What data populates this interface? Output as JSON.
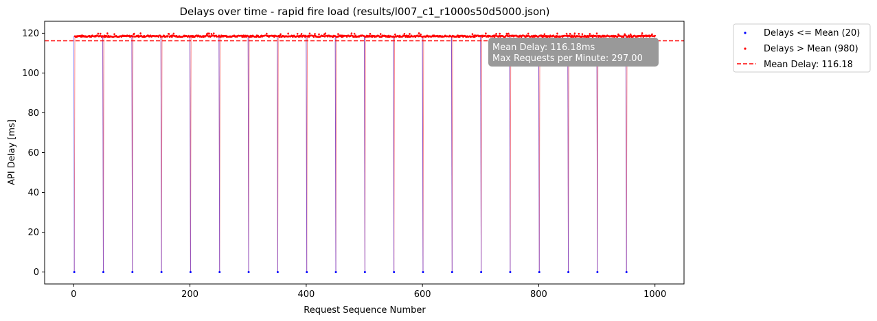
{
  "chart_data": {
    "type": "scatter",
    "title": "Delays over time - rapid fire load (results/l007_c1_r1000s50d5000.json)",
    "xlabel": "Request Sequence Number",
    "ylabel": "API Delay [ms]",
    "xlim": [
      -50,
      1050
    ],
    "ylim": [
      -6,
      126
    ],
    "xticks": [
      0,
      200,
      400,
      600,
      800,
      1000
    ],
    "yticks": [
      0,
      20,
      40,
      60,
      80,
      100,
      120
    ],
    "grid": false,
    "legend_position": "outside-top-right",
    "colors": {
      "low": "#0000ff",
      "high": "#ff0000",
      "mean": "#ff0000",
      "annotation_box": "#999999"
    },
    "series": [
      {
        "name": "Delays <= Mean (20)",
        "color": "#0000ff",
        "x": [
          1,
          51,
          101,
          151,
          201,
          251,
          301,
          351,
          401,
          451,
          501,
          551,
          601,
          651,
          701,
          751,
          801,
          851,
          901,
          951
        ],
        "y": [
          0,
          0,
          0,
          0,
          0,
          0,
          0,
          0,
          0,
          0,
          0,
          0,
          0,
          0,
          0,
          0,
          0,
          0,
          0,
          0
        ]
      },
      {
        "name": "Delays > Mean (980)",
        "color": "#ff0000",
        "x_range": [
          1,
          1000
        ],
        "typical_y": 118.5,
        "y_range": [
          117,
          120
        ]
      }
    ],
    "mean": {
      "label": "Mean Delay: 116.18",
      "value": 116.18
    },
    "annotation": {
      "line1": "Mean Delay: 116.18ms",
      "line2": "Max Requests per Minute:  297.00"
    }
  }
}
